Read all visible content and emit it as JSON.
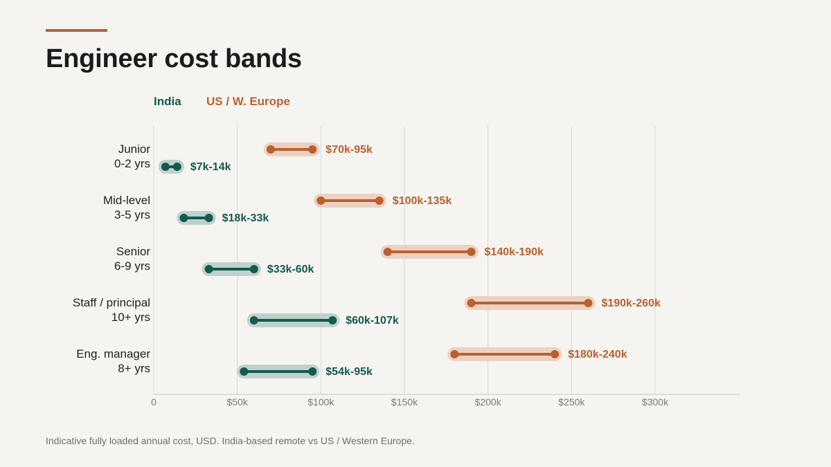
{
  "title": "Engineer cost bands",
  "footnote": "Indicative fully loaded annual cost, USD. India-based remote vs US / Western Europe.",
  "colors": {
    "accent": "#b8612f",
    "india": "#15594f",
    "india_band": "#bdd2cc",
    "us": "#b8612f",
    "us_band": "#ecd1c1",
    "grid": "#d8d8d6",
    "axis": "#c8c8c6"
  },
  "legend": [
    {
      "label": "India",
      "series": "india"
    },
    {
      "label": "US / W. Europe",
      "series": "us"
    }
  ],
  "chart_data": {
    "type": "range_bar",
    "title": "Engineer cost bands",
    "xlim": [
      0,
      350000
    ],
    "x_ticks": [
      0,
      50000,
      100000,
      150000,
      200000,
      250000,
      300000
    ],
    "x_tick_labels": [
      "0",
      "$50k",
      "$100k",
      "$150k",
      "$200k",
      "$250k",
      "$300k"
    ],
    "grid": true,
    "legend_position": "top-left",
    "categories": [
      {
        "line1": "Junior",
        "line2": "0-2 yrs"
      },
      {
        "line1": "Mid-level",
        "line2": "3-5 yrs"
      },
      {
        "line1": "Senior",
        "line2": "6-9 yrs"
      },
      {
        "line1": "Staff / principal",
        "line2": "10+ yrs"
      },
      {
        "line1": "Eng. manager",
        "line2": "8+ yrs"
      }
    ],
    "series": [
      {
        "name": "US / W. Europe",
        "key": "us",
        "ranges": [
          [
            70000,
            95000
          ],
          [
            100000,
            135000
          ],
          [
            140000,
            190000
          ],
          [
            190000,
            260000
          ],
          [
            180000,
            240000
          ]
        ],
        "labels": [
          "$70k-95k",
          "$100k-135k",
          "$140k-190k",
          "$190k-260k",
          "$180k-240k"
        ]
      },
      {
        "name": "India",
        "key": "india",
        "ranges": [
          [
            7000,
            14000
          ],
          [
            18000,
            33000
          ],
          [
            33000,
            60000
          ],
          [
            60000,
            107000
          ],
          [
            54000,
            95000
          ]
        ],
        "labels": [
          "$7k-14k",
          "$18k-33k",
          "$33k-60k",
          "$60k-107k",
          "$54k-95k"
        ]
      }
    ]
  }
}
